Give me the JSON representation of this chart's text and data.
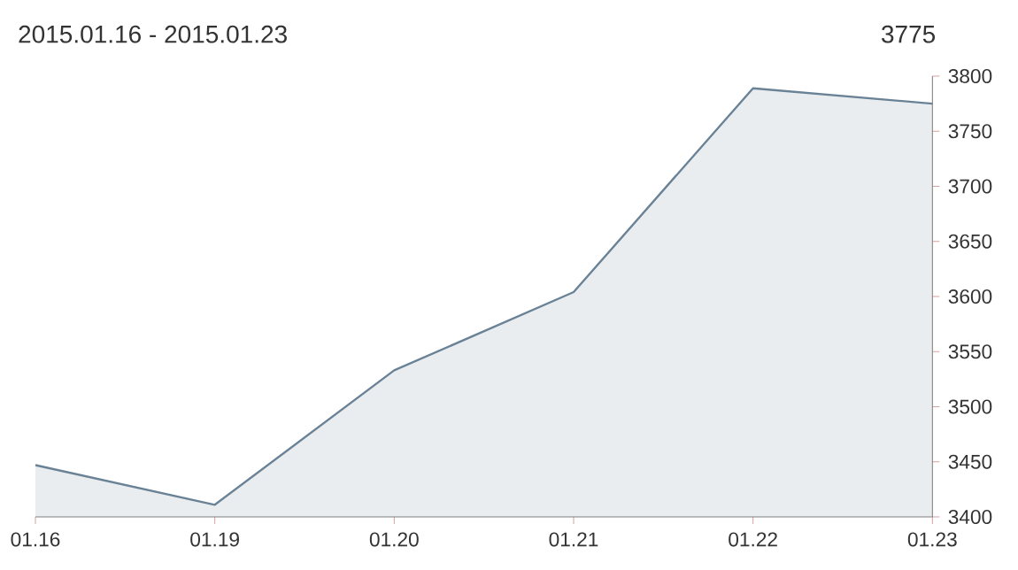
{
  "chart_data": {
    "type": "area",
    "title": "2015.01.16 - 2015.01.23",
    "annotations": [
      "3775"
    ],
    "categories": [
      "01.16",
      "01.19",
      "01.20",
      "01.21",
      "01.22",
      "01.23"
    ],
    "values": [
      3447,
      3411,
      3533,
      3604,
      3789,
      3775
    ],
    "color": "#6a8296",
    "ylim": [
      3400,
      3800
    ],
    "yticks": [
      3400,
      3450,
      3500,
      3550,
      3600,
      3650,
      3700,
      3750,
      3800
    ]
  }
}
